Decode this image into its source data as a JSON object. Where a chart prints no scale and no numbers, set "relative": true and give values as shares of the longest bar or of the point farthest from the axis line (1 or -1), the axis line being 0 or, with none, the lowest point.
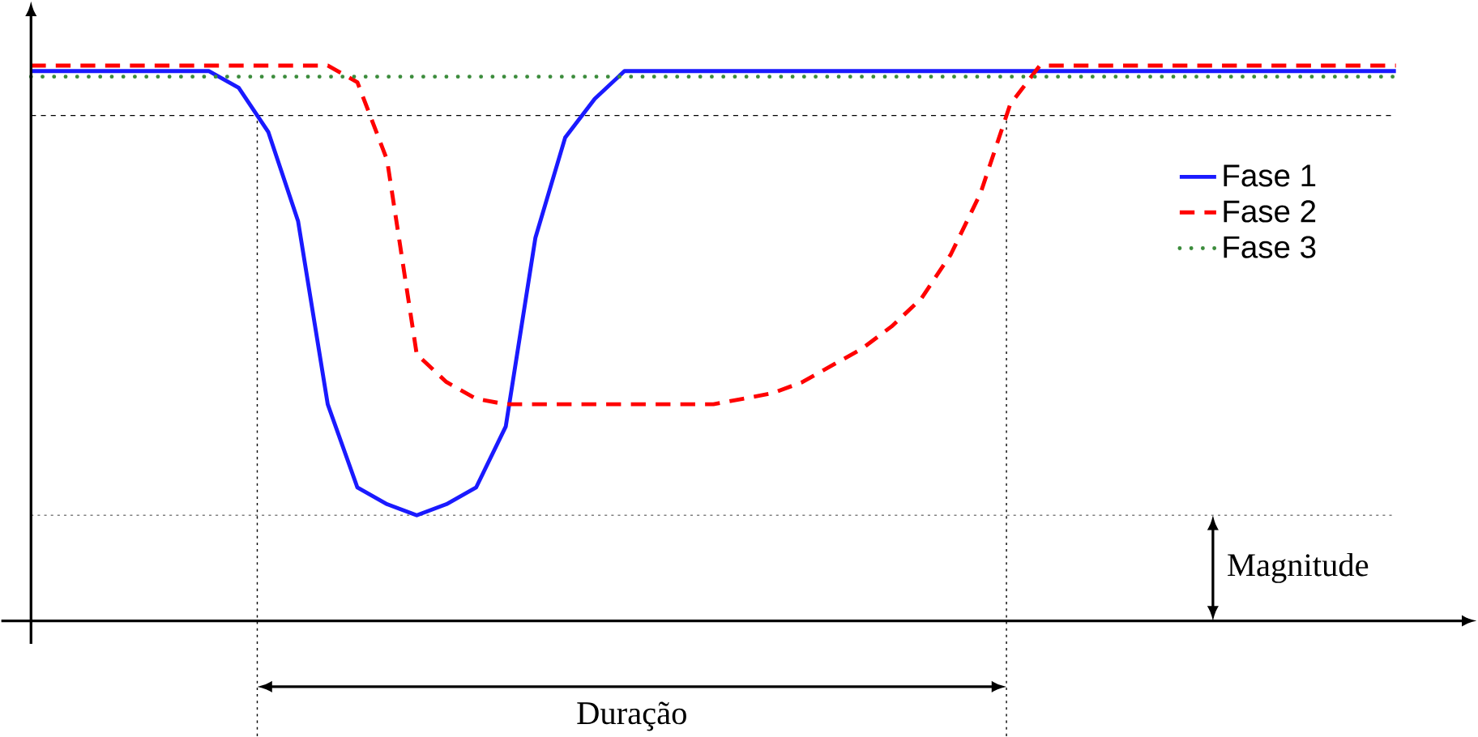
{
  "chart_data": {
    "type": "line",
    "relative": true,
    "legend": "right",
    "categories": [
      null,
      null,
      null,
      null,
      null,
      null,
      null,
      null,
      null,
      null,
      null,
      null,
      null,
      null,
      null,
      null,
      null,
      null,
      null,
      null,
      null,
      null,
      null,
      null,
      null,
      null,
      null,
      null,
      null,
      null,
      null,
      null,
      null,
      null,
      null,
      null,
      null,
      null,
      null,
      null,
      null,
      null,
      null,
      null,
      null,
      null,
      null
    ],
    "series": [
      {
        "name": "Fase 1",
        "color": "#1a1aff",
        "line_style": "solid",
        "values": [
          0.99,
          0.99,
          0.99,
          0.99,
          0.99,
          0.99,
          0.99,
          0.96,
          0.88,
          0.72,
          0.39,
          0.24,
          0.21,
          0.19,
          0.21,
          0.24,
          0.35,
          0.69,
          0.87,
          0.94,
          0.99,
          0.99,
          0.99,
          0.99,
          0.99,
          0.99,
          0.99,
          0.99,
          0.99,
          0.99,
          0.99,
          0.99,
          0.99,
          0.99,
          0.99,
          0.99,
          0.99,
          0.99,
          0.99,
          0.99,
          0.99,
          0.99,
          0.99,
          0.99,
          0.99,
          0.99,
          0.99
        ]
      },
      {
        "name": "Fase 2",
        "color": "#ff0000",
        "line_style": "dashed",
        "values": [
          1.0,
          1.0,
          1.0,
          1.0,
          1.0,
          1.0,
          1.0,
          1.0,
          1.0,
          1.0,
          1.0,
          0.97,
          0.83,
          0.48,
          0.43,
          0.4,
          0.39,
          0.39,
          0.39,
          0.39,
          0.39,
          0.39,
          0.39,
          0.39,
          0.4,
          0.41,
          0.43,
          0.46,
          0.49,
          0.53,
          0.58,
          0.66,
          0.77,
          0.93,
          1.0,
          1.0,
          1.0,
          1.0,
          1.0,
          1.0,
          1.0,
          1.0,
          1.0,
          1.0,
          1.0,
          1.0,
          1.0
        ]
      },
      {
        "name": "Fase 3",
        "color": "#3c8c3c",
        "line_style": "dotted",
        "values": [
          0.98,
          0.98,
          0.98,
          0.98,
          0.98,
          0.98,
          0.98,
          0.98,
          0.98,
          0.98,
          0.98,
          0.98,
          0.98,
          0.98,
          0.98,
          0.98,
          0.98,
          0.98,
          0.98,
          0.98,
          0.98,
          0.98,
          0.98,
          0.98,
          0.98,
          0.98,
          0.98,
          0.98,
          0.98,
          0.98,
          0.98,
          0.98,
          0.98,
          0.98,
          0.98,
          0.98,
          0.98,
          0.98,
          0.98,
          0.98,
          0.98,
          0.98,
          0.98,
          0.98,
          0.98,
          0.98,
          0.98
        ]
      }
    ],
    "ref_lines": [
      {
        "axis": "y",
        "value": 0.91,
        "line_style": "dashed",
        "color": "#000000"
      },
      {
        "axis": "y",
        "value": 0.19,
        "line_style": "dotted",
        "color": "#808080"
      }
    ],
    "annotations": [
      "Magnitude",
      "Duração"
    ]
  }
}
